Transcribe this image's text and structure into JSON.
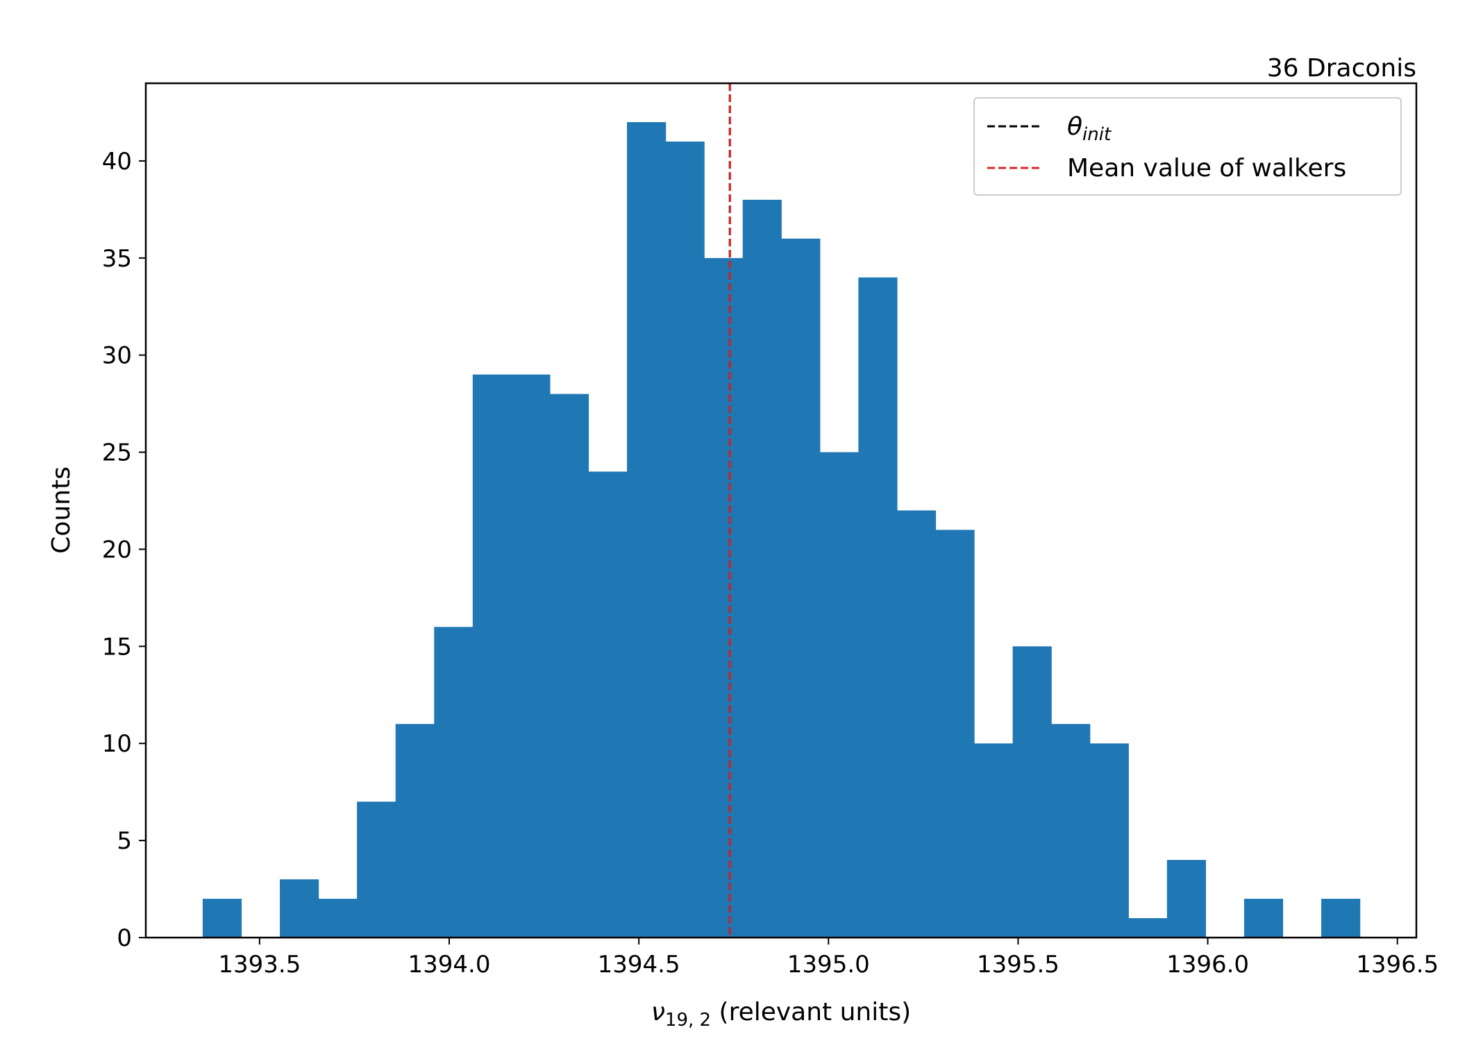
{
  "chart_data": {
    "type": "bar",
    "title": "36 Draconis",
    "xlabel_symbol": "ν",
    "xlabel_subscript": "19, 2",
    "xlabel_rest": " (relevant units)",
    "ylabel": "Counts",
    "xlim": [
      1393.2,
      1396.55
    ],
    "ylim": [
      0,
      44
    ],
    "xticks": [
      1393.5,
      1394.0,
      1394.5,
      1395.0,
      1395.5,
      1396.0,
      1396.5
    ],
    "xtick_labels": [
      "1393.5",
      "1394.0",
      "1394.5",
      "1395.0",
      "1395.5",
      "1396.0",
      "1396.5"
    ],
    "yticks": [
      0,
      5,
      10,
      15,
      20,
      25,
      30,
      35,
      40
    ],
    "ytick_labels": [
      "0",
      "5",
      "10",
      "15",
      "20",
      "25",
      "30",
      "35",
      "40"
    ],
    "bin_start": 1393.35,
    "bin_width": 0.1017,
    "counts": [
      2,
      0,
      3,
      2,
      7,
      11,
      16,
      29,
      29,
      28,
      24,
      42,
      41,
      35,
      38,
      36,
      25,
      34,
      22,
      21,
      10,
      15,
      11,
      10,
      1,
      4,
      0,
      2,
      0,
      2
    ],
    "bar_color": "#1f77b4",
    "vlines": [
      {
        "name": "theta_init",
        "x": 1394.74,
        "color": "#000000"
      },
      {
        "name": "mean",
        "x": 1394.74,
        "color": "#d62728"
      }
    ],
    "legend": {
      "placement": "upper right",
      "items": [
        {
          "symbol": "θ",
          "subscript": "init",
          "label": "",
          "color": "#000000"
        },
        {
          "symbol": "",
          "subscript": "",
          "label": "Mean value of walkers",
          "color": "#d62728"
        }
      ]
    }
  }
}
